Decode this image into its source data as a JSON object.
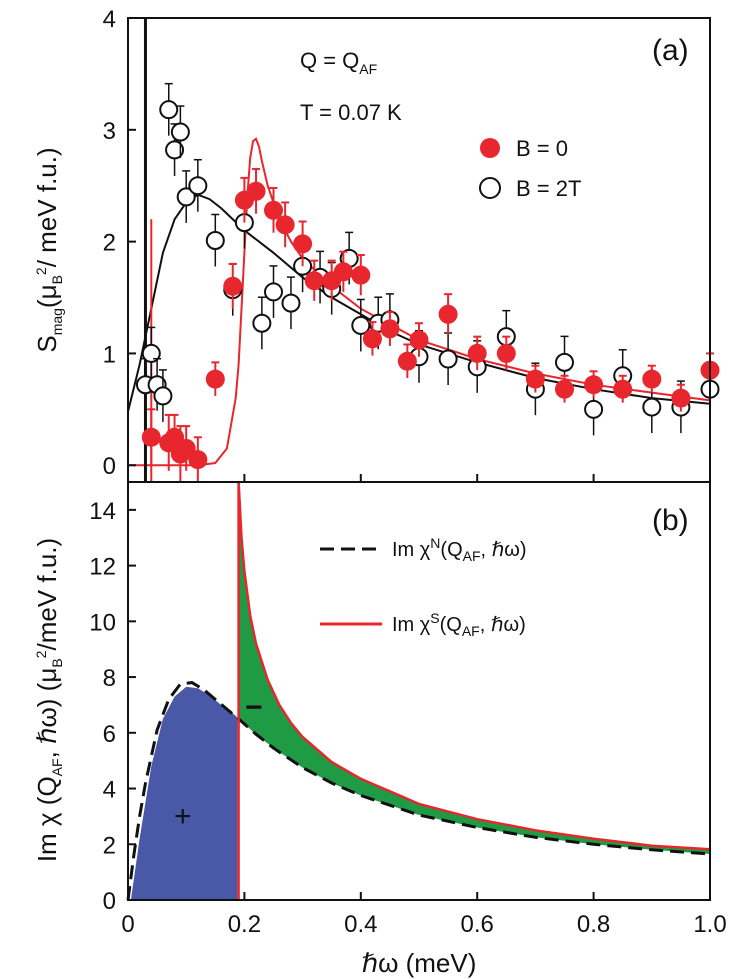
{
  "figure": {
    "x_axis_label": "ℏω (meV)",
    "x_ticks": [
      "0",
      "0.2",
      "0.4",
      "0.6",
      "0.8",
      "1.0"
    ]
  },
  "chart_data": [
    {
      "panel": "(a)",
      "type": "scatter",
      "title": "",
      "annotations": [
        "Q = Q",
        "AF",
        "T = 0.07 K"
      ],
      "xlabel": "ℏω (meV)",
      "ylabel_parts": [
        "S",
        "mag",
        "(μ",
        "B",
        "2",
        "/ meV f.u.)"
      ],
      "xlim": [
        0,
        1.0
      ],
      "ylim": [
        -0.15,
        4.0
      ],
      "y_ticks": [
        "0",
        "1",
        "2",
        "3",
        "4"
      ],
      "grid": false,
      "legend_position": "right",
      "colors": {
        "red": "#e8262d",
        "black": "#111111"
      },
      "series": [
        {
          "name": "B = 0",
          "marker": "filled-circle",
          "x": [
            0.04,
            0.07,
            0.08,
            0.09,
            0.1,
            0.12,
            0.15,
            0.18,
            0.2,
            0.22,
            0.25,
            0.27,
            0.3,
            0.32,
            0.35,
            0.37,
            0.4,
            0.42,
            0.45,
            0.48,
            0.5,
            0.55,
            0.6,
            0.65,
            0.7,
            0.75,
            0.8,
            0.85,
            0.9,
            0.95,
            1.0
          ],
          "y": [
            0.25,
            0.2,
            0.25,
            0.1,
            0.15,
            0.05,
            0.77,
            1.6,
            2.37,
            2.45,
            2.28,
            2.15,
            1.98,
            1.65,
            1.65,
            1.73,
            1.7,
            1.13,
            1.22,
            0.93,
            1.12,
            1.35,
            1.0,
            1.0,
            0.77,
            0.68,
            0.72,
            0.68,
            0.77,
            0.6,
            0.85
          ],
          "err": [
            0.25,
            0.25,
            0.2,
            0.25,
            0.2,
            0.2,
            0.15,
            0.2,
            0.2,
            0.2,
            0.2,
            0.2,
            0.2,
            0.18,
            0.18,
            0.18,
            0.18,
            0.15,
            0.15,
            0.15,
            0.15,
            0.18,
            0.15,
            0.15,
            0.12,
            0.12,
            0.12,
            0.12,
            0.12,
            0.12,
            0.15
          ]
        },
        {
          "name": "B = 2T",
          "marker": "open-circle",
          "x": [
            0.03,
            0.04,
            0.05,
            0.06,
            0.07,
            0.08,
            0.09,
            0.1,
            0.12,
            0.15,
            0.18,
            0.2,
            0.23,
            0.25,
            0.28,
            0.3,
            0.33,
            0.35,
            0.38,
            0.4,
            0.43,
            0.45,
            0.5,
            0.55,
            0.6,
            0.65,
            0.7,
            0.75,
            0.8,
            0.85,
            0.9,
            0.95,
            1.0
          ],
          "y": [
            0.72,
            1.0,
            0.72,
            0.62,
            3.18,
            2.82,
            2.98,
            2.4,
            2.5,
            2.01,
            1.57,
            2.17,
            1.27,
            1.55,
            1.45,
            1.78,
            1.68,
            1.58,
            1.85,
            1.25,
            1.27,
            1.3,
            0.97,
            0.95,
            0.88,
            1.15,
            0.68,
            0.92,
            0.5,
            0.8,
            0.52,
            0.52,
            0.68
          ]
        },
        {
          "name": "B = 0 fit",
          "type": "line",
          "x": [
            0,
            0.05,
            0.08,
            0.12,
            0.15,
            0.17,
            0.185,
            0.19,
            0.195,
            0.2,
            0.205,
            0.21,
            0.215,
            0.22,
            0.225,
            0.23,
            0.24,
            0.26,
            0.28,
            0.3,
            0.35,
            0.4,
            0.5,
            0.6,
            0.7,
            0.8,
            0.9,
            1.0
          ],
          "y": [
            0,
            0,
            0,
            0,
            0.02,
            0.15,
            0.6,
            0.9,
            1.4,
            1.9,
            2.4,
            2.75,
            2.9,
            2.92,
            2.85,
            2.72,
            2.5,
            2.2,
            2.0,
            1.85,
            1.6,
            1.4,
            1.12,
            0.95,
            0.82,
            0.72,
            0.65,
            0.58
          ]
        },
        {
          "name": "B = 2T fit",
          "type": "line",
          "x": [
            0,
            0.02,
            0.04,
            0.06,
            0.08,
            0.1,
            0.12,
            0.14,
            0.16,
            0.2,
            0.25,
            0.3,
            0.35,
            0.4,
            0.45,
            0.5,
            0.6,
            0.7,
            0.8,
            0.9,
            1.0
          ],
          "y": [
            0.48,
            0.9,
            1.4,
            1.9,
            2.2,
            2.35,
            2.42,
            2.38,
            2.3,
            2.1,
            1.9,
            1.68,
            1.5,
            1.35,
            1.2,
            1.08,
            0.92,
            0.78,
            0.68,
            0.6,
            0.55
          ]
        }
      ]
    },
    {
      "panel": "(b)",
      "type": "line",
      "title": "",
      "xlabel": "ℏω (meV)",
      "ylabel_parts": [
        "Im χ (Q",
        "AF",
        ", ℏω) (μ",
        "B",
        "2",
        "/meV f.u.)"
      ],
      "xlim": [
        0,
        1.0
      ],
      "ylim": [
        0,
        15
      ],
      "y_ticks": [
        "0",
        "2",
        "4",
        "6",
        "8",
        "10",
        "12",
        "14"
      ],
      "grid": false,
      "legend_position": "top-right",
      "colors": {
        "blue": "#4a58a8",
        "green": "#1f9b45",
        "red": "#e8262d"
      },
      "annotations": [
        "+",
        "−"
      ],
      "series": [
        {
          "name": "Im χN(QAF, ℏω)",
          "legend_prefix": "Im χ",
          "legend_sup": "N",
          "legend_mid": "(Q",
          "legend_sub": "AF",
          "legend_end": ", ℏω)",
          "style": "dashed-black",
          "x": [
            0,
            0.01,
            0.02,
            0.03,
            0.05,
            0.07,
            0.09,
            0.11,
            0.13,
            0.15,
            0.17,
            0.19,
            0.22,
            0.25,
            0.3,
            0.35,
            0.4,
            0.5,
            0.6,
            0.7,
            0.8,
            0.9,
            1.0
          ],
          "y": [
            0,
            1.6,
            3.0,
            4.2,
            6.1,
            7.2,
            7.75,
            7.8,
            7.55,
            7.2,
            6.85,
            6.5,
            5.95,
            5.45,
            4.75,
            4.2,
            3.75,
            3.05,
            2.6,
            2.25,
            2.0,
            1.8,
            1.65
          ]
        },
        {
          "name": "Im χS(QAF, ℏω)",
          "legend_prefix": "Im χ",
          "legend_sup": "S",
          "legend_mid": "(Q",
          "legend_sub": "AF",
          "legend_end": ", ℏω)",
          "style": "solid-red",
          "x": [
            0.19,
            0.195,
            0.2,
            0.21,
            0.22,
            0.24,
            0.26,
            0.28,
            0.3,
            0.35,
            0.4,
            0.5,
            0.6,
            0.7,
            0.8,
            0.9,
            1.0
          ],
          "y": [
            15,
            13.0,
            11.8,
            10.2,
            9.2,
            7.9,
            7.0,
            6.35,
            5.85,
            4.95,
            4.35,
            3.45,
            2.9,
            2.5,
            2.2,
            1.95,
            1.82
          ]
        },
        {
          "name": "blue area",
          "type": "area",
          "x": [
            0.005,
            0.02,
            0.04,
            0.06,
            0.08,
            0.1,
            0.12,
            0.14,
            0.16,
            0.18,
            0.188
          ],
          "y": [
            0,
            2.2,
            4.8,
            6.5,
            7.3,
            7.65,
            7.6,
            7.35,
            7.0,
            6.7,
            6.55
          ]
        }
      ]
    }
  ]
}
